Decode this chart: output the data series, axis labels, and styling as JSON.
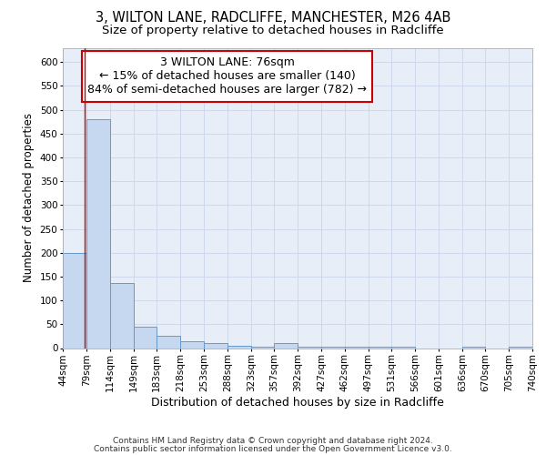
{
  "title1": "3, WILTON LANE, RADCLIFFE, MANCHESTER, M26 4AB",
  "title2": "Size of property relative to detached houses in Radcliffe",
  "xlabel": "Distribution of detached houses by size in Radcliffe",
  "ylabel": "Number of detached properties",
  "annotation_line1": "3 WILTON LANE: 76sqm",
  "annotation_line2": "← 15% of detached houses are smaller (140)",
  "annotation_line3": "84% of semi-detached houses are larger (782) →",
  "bin_edges": [
    44,
    79,
    114,
    149,
    183,
    218,
    253,
    288,
    323,
    357,
    392,
    427,
    462,
    497,
    531,
    566,
    601,
    636,
    670,
    705,
    740
  ],
  "bar_heights": [
    200,
    480,
    137,
    45,
    25,
    14,
    11,
    5,
    3,
    10,
    3,
    3,
    3,
    3,
    3,
    0,
    0,
    3,
    0,
    3
  ],
  "bar_color": "#c5d8f0",
  "bar_edge_color": "#6699cc",
  "bar_linewidth": 0.7,
  "vline_color": "#cc0000",
  "vline_x": 76,
  "ylim": [
    0,
    630
  ],
  "yticks": [
    0,
    50,
    100,
    150,
    200,
    250,
    300,
    350,
    400,
    450,
    500,
    550,
    600
  ],
  "grid_color": "#c8d4e8",
  "background_color": "#e8eef8",
  "footer1": "Contains HM Land Registry data © Crown copyright and database right 2024.",
  "footer2": "Contains public sector information licensed under the Open Government Licence v3.0.",
  "annotation_box_color": "#ffffff",
  "annotation_box_edge": "#cc0000",
  "title1_fontsize": 10.5,
  "title2_fontsize": 9.5,
  "ylabel_fontsize": 8.5,
  "xlabel_fontsize": 9,
  "tick_fontsize": 7.5,
  "annotation_fontsize": 9,
  "footer_fontsize": 6.5
}
